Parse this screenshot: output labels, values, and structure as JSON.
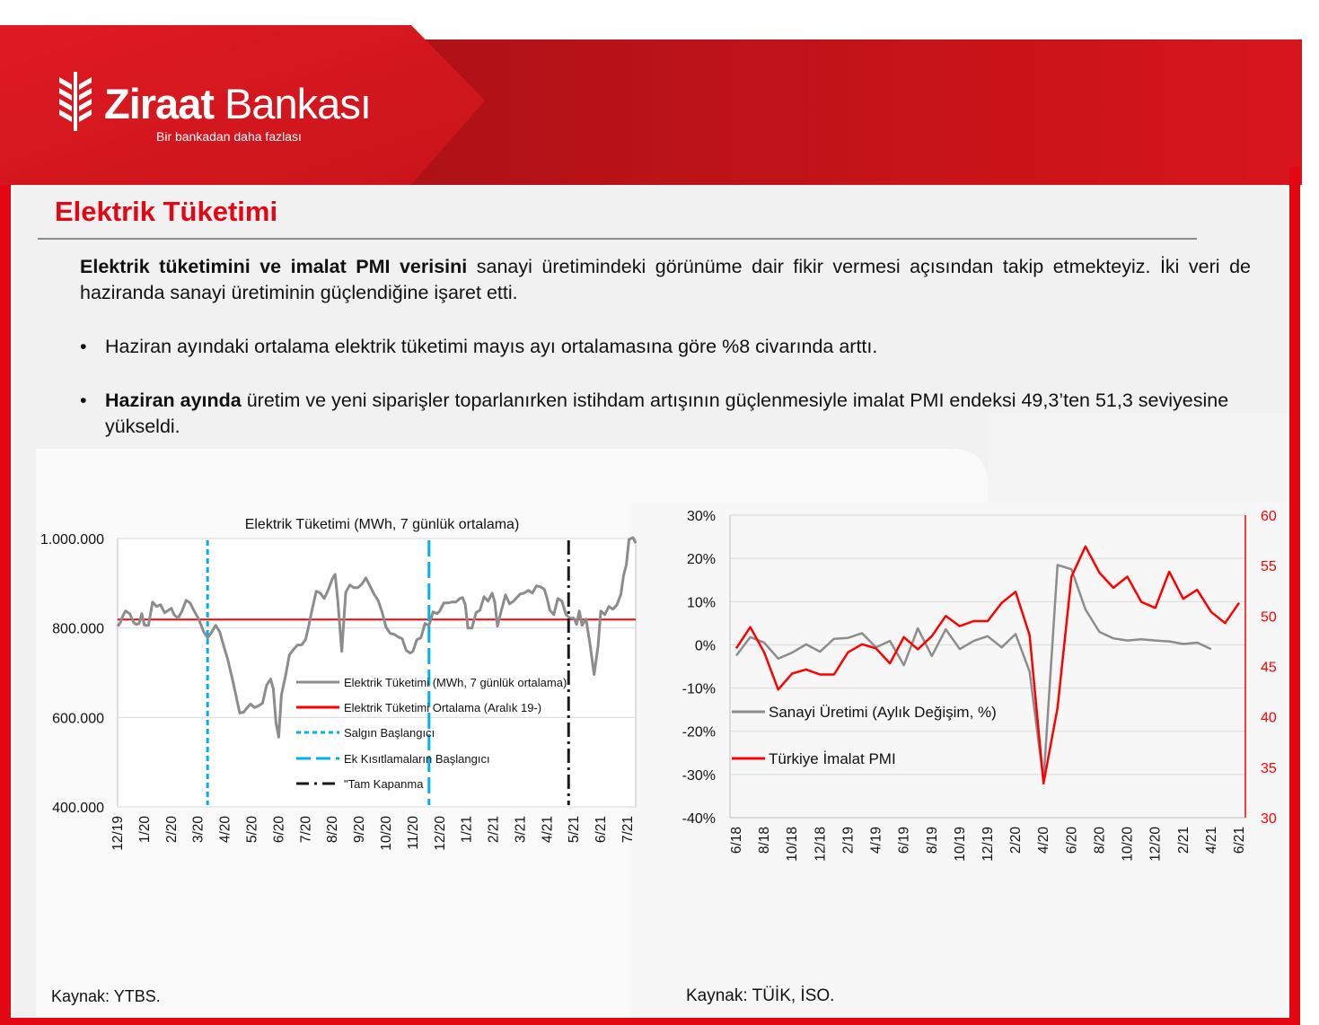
{
  "brand": {
    "name_bold": "Ziraat",
    "name_regular": " Bankası",
    "slogan": "Bir bankadan daha fazlası",
    "accent_color": "#e30613"
  },
  "page": {
    "title": "Elektrik Tüketimi",
    "intro_bold": "Elektrik tüketimini ve imalat PMI verisini",
    "intro_rest": " sanayi üretimindeki görünüme dair fikir vermesi açısından takip etmekteyiz. İki veri de haziranda sanayi üretiminin güçlendiğine işaret etti.",
    "bullets": [
      {
        "bold": "",
        "text": "Haziran ayındaki ortalama elektrik tüketimi mayıs ayı ortalamasına göre %8 civarında arttı."
      },
      {
        "bold": "Haziran ayında",
        "text": " üretim ve yeni siparişler toparlanırken istihdam artışının güçlenmesiyle imalat PMI endeksi 49,3’ten 51,3 seviyesine yükseldi."
      }
    ],
    "bullet_symbol": "•",
    "source_left": "Kaynak: YTBS.",
    "source_right": "Kaynak: TÜİK, İSO."
  },
  "chart_data": [
    {
      "type": "line",
      "title": "Elektrik Tüketimi (MWh, 7 günlük ortalama)",
      "xlabel": "",
      "ylabel": "",
      "x_tick_labels": [
        "12/19",
        "1/20",
        "2/20",
        "3/20",
        "4/20",
        "5/20",
        "6/20",
        "7/20",
        "8/20",
        "9/20",
        "10/20",
        "11/20",
        "12/20",
        "1/21",
        "2/21",
        "3/21",
        "4/21",
        "5/21",
        "6/21",
        "7/21"
      ],
      "y_tick_labels": [
        "400.000",
        "600.000",
        "800.000",
        "1.000.000"
      ],
      "ylim": [
        400000,
        1000000
      ],
      "grid": "horizontal",
      "legend_position": "inside-bottom-right",
      "series": [
        {
          "name": "Elektrik Tüketimi (MWh, 7 günlük ortalama)",
          "color": "#8c8c8c",
          "x": [
            0,
            0.1,
            0.2,
            0.3,
            0.45,
            0.6,
            0.7,
            0.8,
            0.9,
            1,
            1.15,
            1.3,
            1.45,
            1.6,
            1.75,
            1.9,
            2,
            2.1,
            2.25,
            2.4,
            2.55,
            2.7,
            2.85,
            3,
            3.1,
            3.2,
            3.35,
            3.5,
            3.65,
            3.8,
            3.95,
            4.1,
            4.25,
            4.4,
            4.55,
            4.7,
            4.8,
            4.95,
            5.1,
            5.25,
            5.4,
            5.55,
            5.7,
            5.8,
            5.9,
            6,
            6.1,
            6.25,
            6.4,
            6.55,
            6.7,
            6.85,
            7,
            7.1,
            7.25,
            7.4,
            7.55,
            7.7,
            7.85,
            8,
            8.1,
            8.2,
            8.35,
            8.5,
            8.65,
            8.8,
            8.95,
            9.1,
            9.25,
            9.4,
            9.55,
            9.7,
            9.85,
            10,
            10.15,
            10.3,
            10.45,
            10.6,
            10.75,
            10.9,
            11,
            11.15,
            11.3,
            11.45,
            11.6,
            11.75,
            11.9,
            12,
            12.15,
            12.3,
            12.45,
            12.6,
            12.75,
            12.85,
            12.95,
            13.05,
            13.2,
            13.35,
            13.5,
            13.65,
            13.8,
            13.95,
            14.05,
            14.15,
            14.3,
            14.45,
            14.6,
            14.75,
            14.9,
            15,
            15.15,
            15.3,
            15.45,
            15.6,
            15.75,
            15.9,
            16,
            16.1,
            16.25,
            16.4,
            16.55,
            16.7,
            16.85,
            17,
            17.1,
            17.2,
            17.3,
            17.45,
            17.6,
            17.75,
            17.9,
            18,
            18.15,
            18.3,
            18.45,
            18.6,
            18.75,
            18.85,
            18.95,
            19.05,
            19.2,
            19.3
          ],
          "values": [
            804000,
            812000,
            828000,
            838000,
            832000,
            812000,
            808000,
            810000,
            832000,
            806000,
            806000,
            858000,
            848000,
            852000,
            834000,
            840000,
            844000,
            830000,
            822000,
            838000,
            862000,
            856000,
            838000,
            822000,
            808000,
            792000,
            778000,
            790000,
            806000,
            792000,
            760000,
            730000,
            692000,
            652000,
            610000,
            612000,
            620000,
            630000,
            622000,
            626000,
            632000,
            672000,
            686000,
            664000,
            588000,
            556000,
            650000,
            692000,
            740000,
            752000,
            762000,
            762000,
            774000,
            800000,
            842000,
            882000,
            878000,
            866000,
            886000,
            910000,
            920000,
            862000,
            748000,
            880000,
            896000,
            890000,
            890000,
            898000,
            912000,
            894000,
            876000,
            862000,
            836000,
            802000,
            788000,
            786000,
            780000,
            776000,
            750000,
            744000,
            748000,
            774000,
            778000,
            810000,
            806000,
            836000,
            832000,
            838000,
            856000,
            856000,
            858000,
            858000,
            866000,
            868000,
            852000,
            800000,
            800000,
            834000,
            840000,
            870000,
            860000,
            878000,
            858000,
            804000,
            840000,
            874000,
            854000,
            860000,
            870000,
            876000,
            878000,
            884000,
            878000,
            894000,
            892000,
            886000,
            866000,
            840000,
            830000,
            866000,
            860000,
            830000,
            822000,
            822000,
            808000,
            838000,
            806000,
            820000,
            762000,
            696000,
            760000,
            838000,
            830000,
            848000,
            842000,
            852000,
            876000,
            918000,
            940000,
            998000,
            1002000,
            990000
          ],
          "line_style": "solid"
        },
        {
          "name": "Elektrik Tüketimi Ortalama (Aralık 19-)",
          "color": "#ff0000",
          "line_style": "solid",
          "values": [
            819000,
            819000
          ],
          "x": [
            0,
            19.3
          ]
        },
        {
          "name": "Salgın Başlangıcı",
          "color": "#00b0f0",
          "line_style": "dashed",
          "x_position": 3.35
        },
        {
          "name": "Ek Kısıtlamaların Başlangıcı",
          "color": "#00b0f0",
          "line_style": "long-dashed",
          "x_position": 11.6
        },
        {
          "name": "\"Tam Kapanma",
          "color": "#1a1a1a",
          "line_style": "dash-dot",
          "x_position": 16.8
        }
      ],
      "legend_labels": [
        "Elektrik Tüketimi (MWh, 7 günlük ortalama)",
        "Elektrik Tüketimi Ortalama (Aralık 19-)",
        "Salgın Başlangıcı",
        "Ek Kısıtlamaların Başlangıcı",
        "\"Tam Kapanma"
      ]
    },
    {
      "type": "line",
      "title": "",
      "xlabel": "",
      "ylabel": "",
      "x_tick_labels": [
        "6/18",
        "8/18",
        "10/18",
        "12/18",
        "2/19",
        "4/19",
        "6/19",
        "8/19",
        "10/19",
        "12/19",
        "2/20",
        "4/20",
        "6/20",
        "8/20",
        "10/20",
        "12/20",
        "2/21",
        "4/21",
        "6/21"
      ],
      "x": [
        "6/18",
        "7/18",
        "8/18",
        "9/18",
        "10/18",
        "11/18",
        "12/18",
        "1/19",
        "2/19",
        "3/19",
        "4/19",
        "5/19",
        "6/19",
        "7/19",
        "8/19",
        "9/19",
        "10/19",
        "11/19",
        "12/19",
        "1/20",
        "2/20",
        "3/20",
        "4/20",
        "5/20",
        "6/20",
        "7/20",
        "8/20",
        "9/20",
        "10/20",
        "11/20",
        "12/20",
        "1/21",
        "2/21",
        "3/21",
        "4/21",
        "5/21",
        "6/21"
      ],
      "y_left_tick_labels": [
        "-40%",
        "-30%",
        "-20%",
        "-10%",
        "0%",
        "10%",
        "20%",
        "30%"
      ],
      "y_right_tick_labels": [
        "30",
        "35",
        "40",
        "45",
        "50",
        "55",
        "60"
      ],
      "ylim_left": [
        -40,
        30
      ],
      "ylim_right": [
        30,
        60
      ],
      "right_axis_color": "#ff0000",
      "grid": "horizontal",
      "legend_position": "inside-lower-left",
      "series": [
        {
          "name": "Sanayi Üretimi (Aylık Değişim, %)",
          "axis": "left",
          "color": "#8c8c8c",
          "values": [
            -2.5,
            1.8,
            0.5,
            -3.2,
            -1.8,
            0.1,
            -1.6,
            1.4,
            1.6,
            2.7,
            -0.6,
            0.9,
            -4.7,
            3.8,
            -2.6,
            3.6,
            -1.0,
            0.9,
            2.0,
            -0.6,
            2.5,
            -6.2,
            -31.5,
            18.5,
            17.5,
            8.2,
            3.0,
            1.5,
            1.0,
            1.3,
            1.0,
            0.8,
            0.2,
            0.5,
            -1.0,
            null,
            null
          ]
        },
        {
          "name": "Türkiye İmalat PMI",
          "axis": "right",
          "color": "#ff0000",
          "values": [
            46.8,
            48.9,
            46.4,
            42.7,
            44.3,
            44.7,
            44.2,
            44.2,
            46.4,
            47.2,
            46.8,
            45.3,
            47.9,
            46.7,
            48.0,
            50.0,
            49.0,
            49.5,
            49.5,
            51.3,
            52.4,
            48.1,
            33.4,
            40.9,
            53.9,
            56.9,
            54.3,
            52.8,
            53.9,
            51.4,
            50.8,
            54.4,
            51.7,
            52.6,
            50.4,
            49.3,
            51.3
          ]
        }
      ]
    }
  ]
}
